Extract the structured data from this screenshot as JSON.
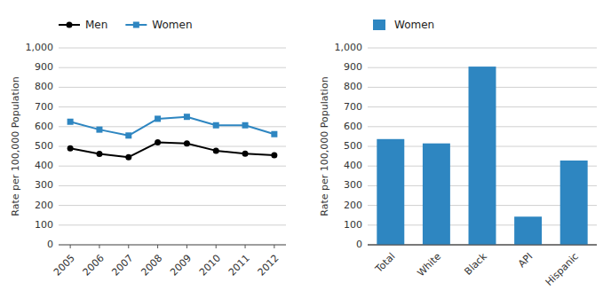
{
  "chart_data": [
    {
      "type": "line",
      "x": [
        2005,
        2006,
        2007,
        2008,
        2009,
        2010,
        2011,
        2012
      ],
      "xlim": [
        2004.6,
        2012.4
      ],
      "xticks": [
        2005,
        2006,
        2007,
        2008,
        2009,
        2010,
        2011,
        2012
      ],
      "series": [
        {
          "name": "Men",
          "color": "#000000",
          "marker": "circle",
          "values": [
            490,
            462,
            445,
            520,
            515,
            478,
            463,
            455
          ]
        },
        {
          "name": "Women",
          "color": "#2E86C1",
          "marker": "square",
          "values": [
            625,
            585,
            555,
            640,
            650,
            607,
            607,
            562
          ]
        }
      ],
      "y_label": "Rate per 100,000 Population",
      "ylim": [
        0,
        1000
      ],
      "yticks": [
        0,
        100,
        200,
        300,
        400,
        500,
        600,
        700,
        800,
        900,
        {
          "value": 1000,
          "label": "1,000"
        }
      ],
      "grid": true,
      "legend": "upper left"
    },
    {
      "type": "bar",
      "categories": [
        "Total",
        "White",
        "Black",
        "API",
        "Hispanic"
      ],
      "series": [
        {
          "name": "Women",
          "color": "#2E86C1",
          "values": [
            537,
            515,
            905,
            143,
            428
          ]
        }
      ],
      "y_label": "Rate per 100,000 Population",
      "ylim": [
        0,
        1000
      ],
      "yticks": [
        0,
        100,
        200,
        300,
        400,
        500,
        600,
        700,
        800,
        900,
        {
          "value": 1000,
          "label": "1,000"
        }
      ],
      "grid": true,
      "legend": "upper left"
    }
  ]
}
